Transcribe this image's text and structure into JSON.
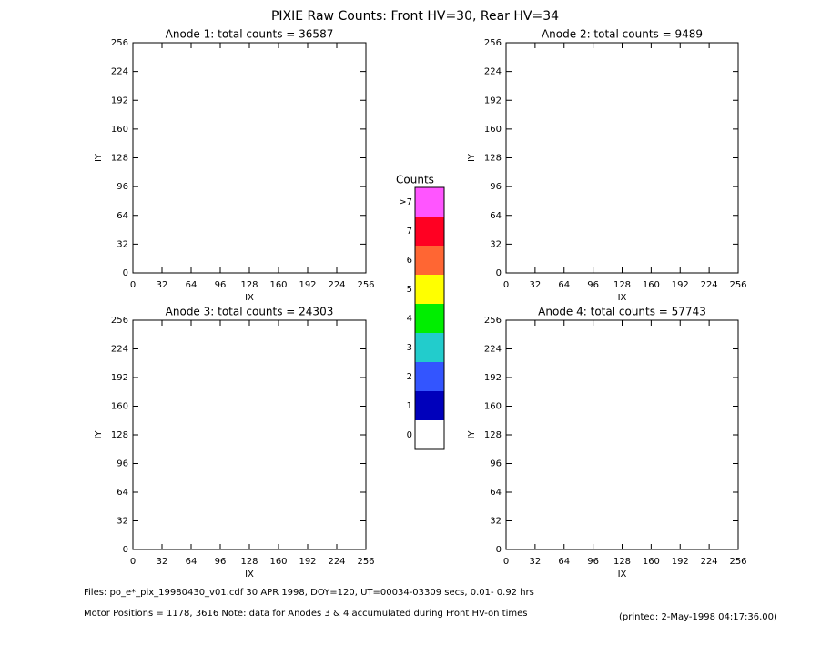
{
  "title": "PIXIE Raw Counts:  Front HV=30, Rear HV=34",
  "chart_data": [
    {
      "type": "heatmap",
      "title": "Anode 1: total counts = 36587",
      "xlabel": "IX",
      "ylabel": "IY",
      "xlim": [
        0,
        256
      ],
      "ylim": [
        0,
        256
      ],
      "xticks": [
        0,
        32,
        64,
        96,
        128,
        160,
        192,
        224,
        256
      ],
      "yticks": [
        0,
        32,
        64,
        96,
        128,
        160,
        192,
        224,
        256
      ]
    },
    {
      "type": "heatmap",
      "title": "Anode 2: total counts = 9489",
      "xlabel": "IX",
      "ylabel": "IY",
      "xlim": [
        0,
        256
      ],
      "ylim": [
        0,
        256
      ],
      "xticks": [
        0,
        32,
        64,
        96,
        128,
        160,
        192,
        224,
        256
      ],
      "yticks": [
        0,
        32,
        64,
        96,
        128,
        160,
        192,
        224,
        256
      ]
    },
    {
      "type": "heatmap",
      "title": "Anode 3: total counts = 24303",
      "xlabel": "IX",
      "ylabel": "IY",
      "xlim": [
        0,
        256
      ],
      "ylim": [
        0,
        256
      ],
      "xticks": [
        0,
        32,
        64,
        96,
        128,
        160,
        192,
        224,
        256
      ],
      "yticks": [
        0,
        32,
        64,
        96,
        128,
        160,
        192,
        224,
        256
      ]
    },
    {
      "type": "heatmap",
      "title": "Anode 4: total counts = 57743",
      "xlabel": "IX",
      "ylabel": "IY",
      "xlim": [
        0,
        256
      ],
      "ylim": [
        0,
        256
      ],
      "xticks": [
        0,
        32,
        64,
        96,
        128,
        160,
        192,
        224,
        256
      ],
      "yticks": [
        0,
        32,
        64,
        96,
        128,
        160,
        192,
        224,
        256
      ]
    }
  ],
  "colorbar": {
    "title": "Counts",
    "labels": [
      ">7",
      "7",
      "6",
      "5",
      "4",
      "3",
      "2",
      "1",
      "0"
    ],
    "colors": [
      "#ff55ff",
      "#ff0022",
      "#ff6633",
      "#ffff00",
      "#00ee00",
      "#22cccc",
      "#3355ff",
      "#0000bb",
      "#ffffff"
    ]
  },
  "footer": {
    "files": "Files: po_e*_pix_19980430_v01.cdf    30 APR 1998, DOY=120, UT=00034-03309 secs,  0.01- 0.92 hrs",
    "motor": "Motor Positions = 1178, 3616    Note: data for Anodes 3 & 4 accumulated during Front HV-on times",
    "printed": "(printed:  2-May-1998 04:17:36.00)"
  }
}
